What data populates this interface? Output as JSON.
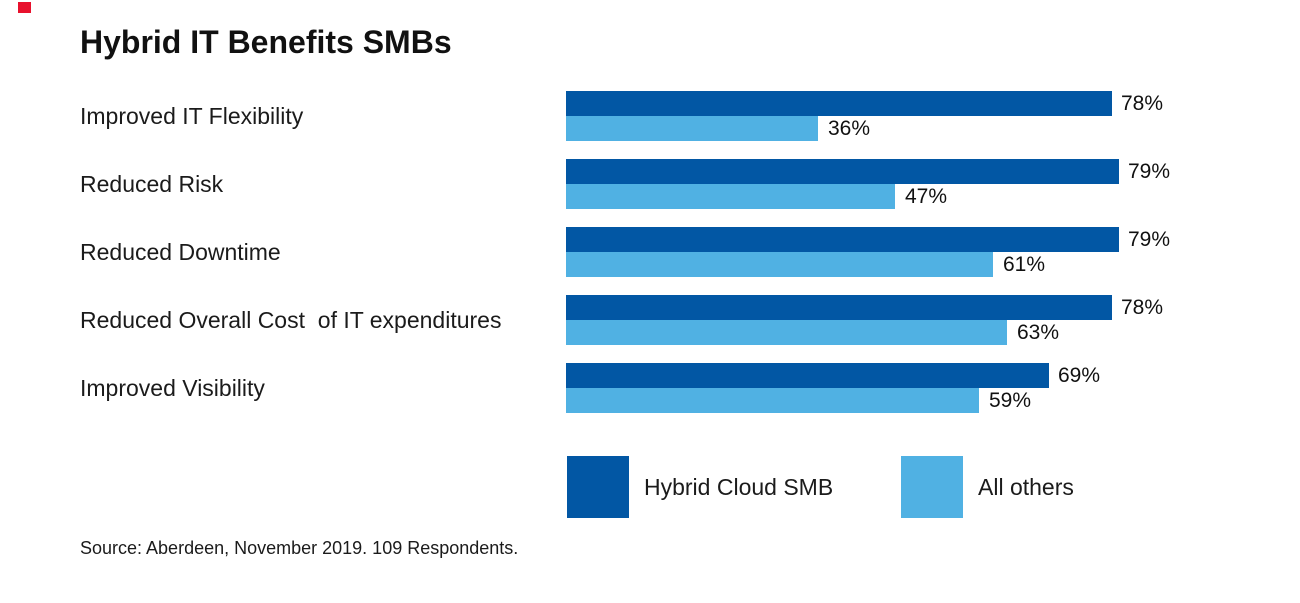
{
  "brand": {
    "mark_color": "#e8112d"
  },
  "header": {
    "title": "Hybrid IT Benefits SMBs"
  },
  "legend": {
    "items": [
      {
        "label": "Hybrid Cloud SMB",
        "color": "#0257a4"
      },
      {
        "label": "All others",
        "color": "#50b1e3"
      }
    ]
  },
  "footer": {
    "source": "Source: Aberdeen, November 2019. 109 Respondents."
  },
  "chart_data": {
    "type": "bar",
    "orientation": "horizontal",
    "title": "Hybrid IT Benefits SMBs",
    "categories": [
      "Improved IT Flexibility",
      "Reduced Risk",
      "Reduced Downtime",
      "Reduced Overall Cost  of IT expenditures",
      "Improved Visibility"
    ],
    "series": [
      {
        "name": "Hybrid Cloud SMB",
        "color": "#0257a4",
        "values": [
          78,
          79,
          79,
          78,
          69
        ]
      },
      {
        "name": "All others",
        "color": "#50b1e3",
        "values": [
          36,
          47,
          61,
          63,
          59
        ]
      }
    ],
    "value_suffix": "%",
    "xlim": [
      0,
      100
    ],
    "data_labels": true,
    "grid": false,
    "legend_position": "bottom",
    "source": "Source: Aberdeen, November 2019. 109 Respondents."
  }
}
